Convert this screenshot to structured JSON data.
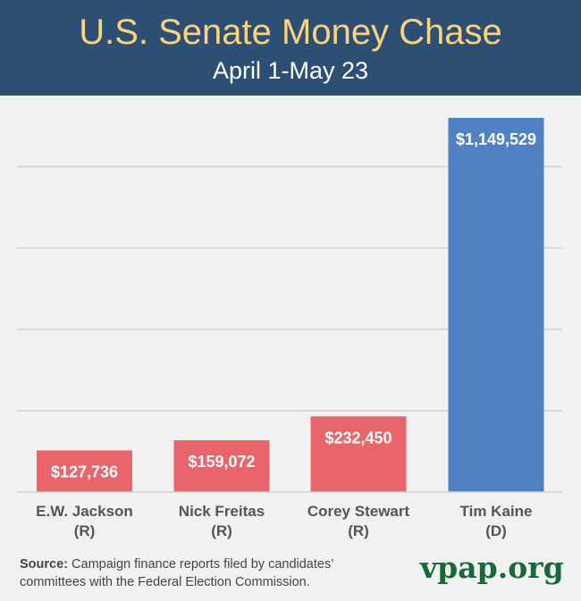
{
  "header": {
    "title": "U.S. Senate Money Chase",
    "subtitle": "April 1-May 23"
  },
  "chart_data": {
    "type": "bar",
    "title": "U.S. Senate Money Chase",
    "subtitle": "April 1-May 23",
    "categories": [
      "E.W. Jackson",
      "Nick Freitas",
      "Corey Stewart",
      "Tim Kaine"
    ],
    "parties": [
      "(R)",
      "(R)",
      "(R)",
      "(D)"
    ],
    "values": [
      127736,
      159072,
      232450,
      1149529
    ],
    "value_labels": [
      "$127,736",
      "$159,072",
      "$232,450",
      "$1,149,529"
    ],
    "colors": [
      "#e8666b",
      "#e8666b",
      "#e8666b",
      "#5081c2"
    ],
    "gridlines": [
      250000,
      500000,
      750000,
      1000000
    ],
    "grid": true,
    "xlabel": "",
    "ylabel": "",
    "ylim": [
      0,
      1149529
    ]
  },
  "footer": {
    "source_label": "Source:",
    "source_text": " Campaign finance reports filed by candidates’ committees with the Federal Election Commission.",
    "logo": "vpap.org"
  }
}
